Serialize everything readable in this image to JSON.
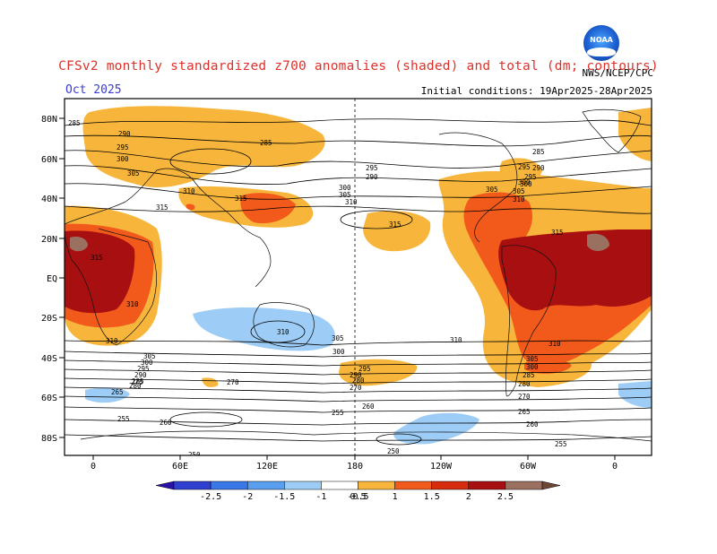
{
  "header": {
    "title": "CFSv2 monthly standardized z700 anomalies (shaded) and total (dm; contours)",
    "valid_month": "Oct 2025",
    "initial_conditions": "Initial conditions: 19Apr2025-28Apr2025",
    "agency": "NWS/NCEP/CPC",
    "logo_text": "NOAA"
  },
  "axes": {
    "lat_labels": [
      "80N",
      "60N",
      "40N",
      "20N",
      "EQ",
      "20S",
      "40S",
      "60S",
      "80S"
    ],
    "lon_labels": [
      "0",
      "60E",
      "120E",
      "180",
      "120W",
      "60W",
      "0"
    ]
  },
  "colorbar": {
    "labels": [
      "-2.5",
      "-2",
      "-1.5",
      "-1",
      "-0.5",
      "0.5",
      "1",
      "1.5",
      "2",
      "2.5"
    ],
    "colors": [
      "#2a12a8",
      "#2f3fd0",
      "#3a78e8",
      "#5a9ef0",
      "#9dcdf6",
      "#ffffff",
      "#f7b63b",
      "#f25a1c",
      "#d82c0e",
      "#a80f10",
      "#9a7060",
      "#6e4636"
    ]
  },
  "contour_labels": [
    {
      "t": "285"
    },
    {
      "t": "290"
    },
    {
      "t": "295"
    },
    {
      "t": "300"
    },
    {
      "t": "305"
    },
    {
      "t": "310"
    },
    {
      "t": "315"
    },
    {
      "t": "285"
    },
    {
      "t": "295"
    },
    {
      "t": "290"
    },
    {
      "t": "300"
    },
    {
      "t": "305"
    },
    {
      "t": "310"
    },
    {
      "t": "315"
    },
    {
      "t": "315"
    },
    {
      "t": "310"
    },
    {
      "t": "305"
    },
    {
      "t": "300"
    },
    {
      "t": "295"
    },
    {
      "t": "290"
    },
    {
      "t": "285"
    },
    {
      "t": "280"
    },
    {
      "t": "275"
    },
    {
      "t": "270"
    },
    {
      "t": "265"
    },
    {
      "t": "260"
    },
    {
      "t": "255"
    },
    {
      "t": "250"
    },
    {
      "t": "310"
    },
    {
      "t": "305"
    },
    {
      "t": "300"
    },
    {
      "t": "310"
    },
    {
      "t": "315"
    },
    {
      "t": "310"
    },
    {
      "t": "305"
    },
    {
      "t": "300"
    },
    {
      "t": "295"
    },
    {
      "t": "285"
    },
    {
      "t": "280"
    },
    {
      "t": "270"
    },
    {
      "t": "260"
    },
    {
      "t": "255"
    },
    {
      "t": "250"
    },
    {
      "t": "265"
    },
    {
      "t": "270"
    },
    {
      "t": "280"
    },
    {
      "t": "290"
    },
    {
      "t": "295"
    },
    {
      "t": "300"
    },
    {
      "t": "305"
    },
    {
      "t": "310"
    },
    {
      "t": "285"
    },
    {
      "t": "290"
    },
    {
      "t": "295"
    },
    {
      "t": "300"
    },
    {
      "t": "305"
    },
    {
      "t": "310"
    },
    {
      "t": "315"
    },
    {
      "t": "255"
    },
    {
      "t": "260"
    }
  ]
}
